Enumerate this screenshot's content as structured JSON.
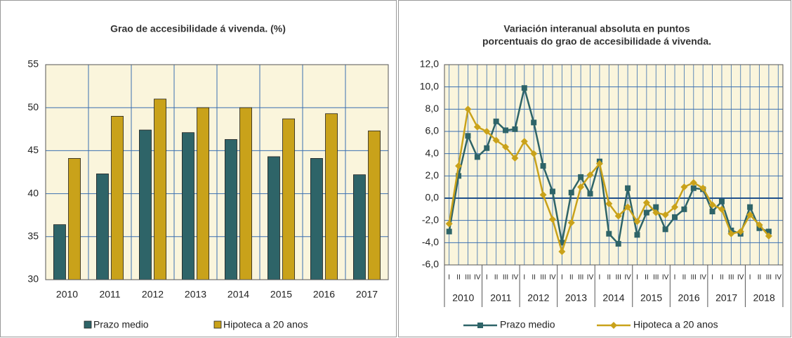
{
  "chart_data": [
    {
      "type": "bar",
      "title": "Grao de accesibilidade á vivenda. (%)",
      "categories": [
        "2010",
        "2011",
        "2012",
        "2013",
        "2014",
        "2015",
        "2016",
        "2017"
      ],
      "series": [
        {
          "name": "Prazo medio",
          "color": "#2e6468",
          "values": [
            36.4,
            42.3,
            47.4,
            47.1,
            46.3,
            44.3,
            44.1,
            42.2
          ]
        },
        {
          "name": "Hipoteca a 20 anos",
          "color": "#c9a21a",
          "values": [
            44.1,
            49.0,
            51.0,
            50.0,
            50.0,
            48.7,
            49.3,
            47.3
          ]
        }
      ],
      "ylim": [
        30,
        55
      ],
      "yticks": [
        30,
        35,
        40,
        45,
        50,
        55
      ],
      "grid": true
    },
    {
      "type": "line",
      "title": [
        "Variación interanual absoluta en puntos",
        "porcentuais do grao de accesibilidade á vivenda."
      ],
      "categories": [
        "I",
        "II",
        "III",
        "IV",
        "I",
        "II",
        "III",
        "IV",
        "I",
        "II",
        "III",
        "IV",
        "I",
        "II",
        "III",
        "IV",
        "I",
        "II",
        "III",
        "IV",
        "I",
        "II",
        "III",
        "IV",
        "I",
        "II",
        "III",
        "IV",
        "I",
        "II",
        "III",
        "IV",
        "I",
        "II",
        "III",
        "IV"
      ],
      "years": [
        "2010",
        "2011",
        "2012",
        "2013",
        "2014",
        "2015",
        "2016",
        "2017",
        "2018"
      ],
      "series": [
        {
          "name": "Prazo medio",
          "color": "#2e6468",
          "marker": "square",
          "values": [
            -3.0,
            2.0,
            5.6,
            3.7,
            4.5,
            6.9,
            6.1,
            6.2,
            9.9,
            6.8,
            2.9,
            0.6,
            -4.0,
            0.5,
            1.9,
            0.4,
            3.3,
            -3.2,
            -4.1,
            0.9,
            -3.3,
            -1.3,
            -0.8,
            -2.8,
            -1.7,
            -1.0,
            0.9,
            0.8,
            -1.2,
            -0.3,
            -2.9,
            -3.2,
            -0.8,
            -2.7,
            -3.0,
            null
          ]
        },
        {
          "name": "Hipoteca a 20 anos",
          "color": "#c9a21a",
          "marker": "diamond",
          "values": [
            -2.3,
            2.9,
            8.0,
            6.4,
            6.0,
            5.2,
            4.6,
            3.6,
            5.1,
            4.0,
            0.3,
            -1.9,
            -4.8,
            -2.2,
            1.0,
            2.1,
            3.1,
            -0.5,
            -1.6,
            -0.8,
            -2.1,
            -0.4,
            -1.3,
            -1.5,
            -0.8,
            1.0,
            1.4,
            0.9,
            -0.6,
            -1.0,
            -3.2,
            -3.0,
            -1.5,
            -2.4,
            -3.4,
            null
          ]
        }
      ],
      "ylim": [
        -6,
        12
      ],
      "yticks": [
        {
          "value": -6,
          "label": "-6,0"
        },
        {
          "value": -4,
          "label": "-4,0"
        },
        {
          "value": -2,
          "label": "-2,0"
        },
        {
          "value": 0,
          "label": "0,0"
        },
        {
          "value": 2,
          "label": "2,0"
        },
        {
          "value": 4,
          "label": "4,0"
        },
        {
          "value": 6,
          "label": "6,0"
        },
        {
          "value": 8,
          "label": "8,0"
        },
        {
          "value": 10,
          "label": "10,0"
        },
        {
          "value": 12,
          "label": "12,0"
        }
      ],
      "grid": true
    }
  ]
}
